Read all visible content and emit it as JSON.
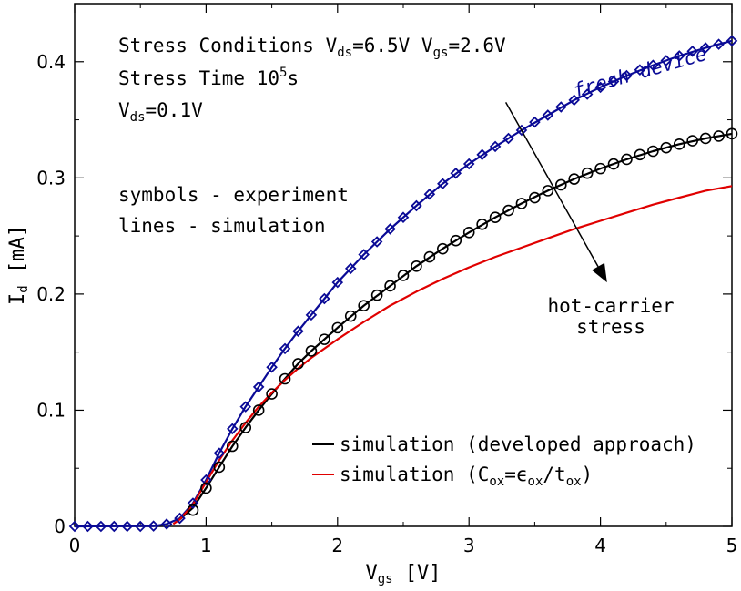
{
  "chart_data": {
    "type": "line",
    "xlabel": {
      "main": "V",
      "sub": "gs",
      "unit": " [V]"
    },
    "ylabel": {
      "main": "I",
      "sub": "d",
      "unit": " [mA]"
    },
    "xlim": [
      0,
      5
    ],
    "ylim": [
      0,
      0.45
    ],
    "x_ticks": [
      0,
      1,
      2,
      3,
      4,
      5
    ],
    "y_ticks": [
      0,
      0.1,
      0.2,
      0.3,
      0.4
    ],
    "x_tick_labels": [
      "0",
      "1",
      "2",
      "3",
      "4",
      "5"
    ],
    "y_tick_labels": [
      "0",
      "0.1",
      "0.2",
      "0.3",
      "0.4"
    ],
    "grid": false,
    "legend_position": "bottom-right",
    "colors": {
      "fresh": "#0a0a96",
      "black": "#000000",
      "red": "#e00000"
    },
    "annotations": {
      "conditions_line1": {
        "a": "Stress Conditions V",
        "b": "ds",
        "c": "=6.5V V",
        "d": "gs",
        "e": "=2.6V"
      },
      "conditions_line2": {
        "a": "Stress Time 10",
        "b": "5",
        "c": "s"
      },
      "conditions_line3": {
        "a": "V",
        "b": "ds",
        "c": "=0.1V"
      },
      "symbols_note": "symbols - experiment",
      "lines_note": "lines - simulation",
      "fresh_label": "fresh device",
      "stress_label_1": "hot-carrier",
      "stress_label_2": "stress",
      "arrow": {
        "from": [
          3.28,
          0.365
        ],
        "to": [
          4.05,
          0.21
        ]
      }
    },
    "legend": {
      "black_label": "simulation (developed approach)",
      "red_label": {
        "a": "simulation (C",
        "b": "ox",
        "c": "=ϵ",
        "d": "ox",
        "e": "/t",
        "f": "ox",
        "g": ")"
      }
    },
    "series": [
      {
        "key": "fresh_line",
        "kind": "line",
        "color": "#0a0a96",
        "x": [
          0,
          0.6,
          0.7,
          0.8,
          0.9,
          1.0,
          1.1,
          1.2,
          1.3,
          1.4,
          1.5,
          1.6,
          1.7,
          1.8,
          1.9,
          2.0,
          2.2,
          2.4,
          2.6,
          2.8,
          3.0,
          3.2,
          3.4,
          3.6,
          3.8,
          4.0,
          4.2,
          4.4,
          4.6,
          4.8,
          5.0
        ],
        "y": [
          0,
          0.0003,
          0.002,
          0.007,
          0.02,
          0.04,
          0.063,
          0.084,
          0.103,
          0.12,
          0.137,
          0.153,
          0.168,
          0.182,
          0.196,
          0.21,
          0.234,
          0.256,
          0.276,
          0.295,
          0.312,
          0.327,
          0.341,
          0.354,
          0.367,
          0.378,
          0.388,
          0.397,
          0.405,
          0.412,
          0.418
        ]
      },
      {
        "key": "fresh_exp",
        "kind": "diamonds",
        "color": "#0a0a96",
        "x": [
          0,
          0.1,
          0.2,
          0.3,
          0.4,
          0.5,
          0.6,
          0.7,
          0.8,
          0.9,
          1.0,
          1.1,
          1.2,
          1.3,
          1.4,
          1.5,
          1.6,
          1.7,
          1.8,
          1.9,
          2.0,
          2.1,
          2.2,
          2.3,
          2.4,
          2.5,
          2.6,
          2.7,
          2.8,
          2.9,
          3.0,
          3.1,
          3.2,
          3.3,
          3.4,
          3.5,
          3.6,
          3.7,
          3.8,
          3.9,
          4.0,
          4.1,
          4.2,
          4.3,
          4.4,
          4.5,
          4.6,
          4.7,
          4.8,
          4.9,
          5.0
        ],
        "y": [
          0,
          0,
          0,
          0,
          0,
          0,
          0.0003,
          0.002,
          0.007,
          0.02,
          0.04,
          0.063,
          0.084,
          0.103,
          0.12,
          0.137,
          0.153,
          0.168,
          0.182,
          0.196,
          0.21,
          0.222,
          0.234,
          0.245,
          0.256,
          0.266,
          0.276,
          0.286,
          0.295,
          0.304,
          0.312,
          0.32,
          0.327,
          0.334,
          0.341,
          0.348,
          0.354,
          0.361,
          0.367,
          0.372,
          0.378,
          0.383,
          0.388,
          0.393,
          0.397,
          0.401,
          0.405,
          0.409,
          0.412,
          0.415,
          0.418
        ]
      },
      {
        "key": "black_line",
        "kind": "line",
        "color": "#000000",
        "x": [
          0.8,
          0.9,
          1.0,
          1.1,
          1.2,
          1.3,
          1.4,
          1.5,
          1.6,
          1.7,
          1.8,
          1.9,
          2.0,
          2.2,
          2.4,
          2.6,
          2.8,
          3.0,
          3.2,
          3.4,
          3.6,
          3.8,
          4.0,
          4.2,
          4.4,
          4.6,
          4.8,
          5.0
        ],
        "y": [
          0.006,
          0.016,
          0.033,
          0.051,
          0.069,
          0.085,
          0.1,
          0.114,
          0.127,
          0.14,
          0.151,
          0.161,
          0.171,
          0.19,
          0.207,
          0.224,
          0.239,
          0.253,
          0.266,
          0.278,
          0.289,
          0.299,
          0.308,
          0.316,
          0.323,
          0.329,
          0.334,
          0.338
        ]
      },
      {
        "key": "black_exp",
        "kind": "circles",
        "color": "#000000",
        "x": [
          0.9,
          1.0,
          1.1,
          1.2,
          1.3,
          1.4,
          1.5,
          1.6,
          1.7,
          1.8,
          1.9,
          2.0,
          2.1,
          2.2,
          2.3,
          2.4,
          2.5,
          2.6,
          2.7,
          2.8,
          2.9,
          3.0,
          3.1,
          3.2,
          3.3,
          3.4,
          3.5,
          3.6,
          3.7,
          3.8,
          3.9,
          4.0,
          4.1,
          4.2,
          4.3,
          4.4,
          4.5,
          4.6,
          4.7,
          4.8,
          4.9,
          5.0
        ],
        "y": [
          0.014,
          0.033,
          0.051,
          0.069,
          0.085,
          0.1,
          0.114,
          0.127,
          0.14,
          0.151,
          0.161,
          0.171,
          0.181,
          0.19,
          0.199,
          0.207,
          0.216,
          0.224,
          0.232,
          0.239,
          0.246,
          0.253,
          0.26,
          0.266,
          0.272,
          0.278,
          0.283,
          0.289,
          0.294,
          0.299,
          0.304,
          0.308,
          0.312,
          0.316,
          0.32,
          0.323,
          0.326,
          0.329,
          0.332,
          0.334,
          0.336,
          0.338
        ]
      },
      {
        "key": "red_line",
        "kind": "line",
        "color": "#e00000",
        "x": [
          0.75,
          0.8,
          0.9,
          1.0,
          1.1,
          1.2,
          1.3,
          1.4,
          1.5,
          1.6,
          1.7,
          1.8,
          2.0,
          2.2,
          2.4,
          2.6,
          2.8,
          3.0,
          3.2,
          3.4,
          3.6,
          3.8,
          4.0,
          4.2,
          4.4,
          4.6,
          4.8,
          5.0
        ],
        "y": [
          0.002,
          0.006,
          0.019,
          0.038,
          0.057,
          0.074,
          0.089,
          0.103,
          0.115,
          0.126,
          0.136,
          0.145,
          0.161,
          0.176,
          0.19,
          0.202,
          0.213,
          0.223,
          0.232,
          0.24,
          0.248,
          0.256,
          0.263,
          0.27,
          0.277,
          0.283,
          0.289,
          0.293
        ]
      }
    ]
  }
}
